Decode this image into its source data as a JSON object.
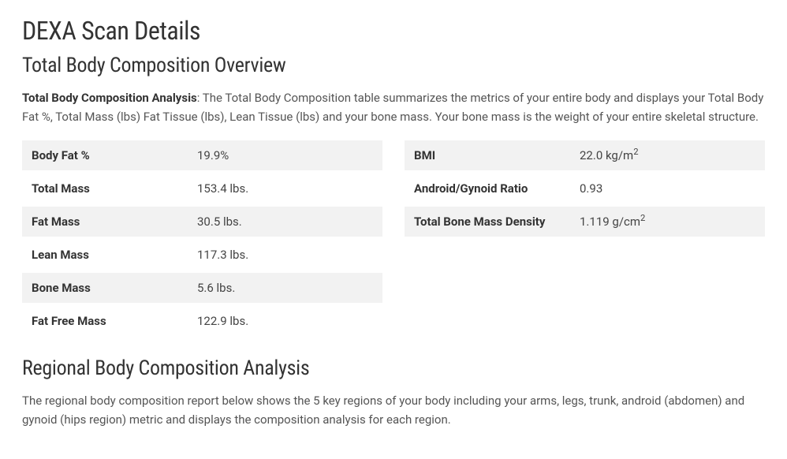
{
  "title": "DEXA Scan Details",
  "overview": {
    "heading": "Total Body Composition Overview",
    "intro_bold": "Total Body Composition Analysis",
    "intro_text": ": The Total Body Composition table summarizes the metrics of your entire body and displays your Total Body Fat %, Total Mass (lbs) Fat Tissue (lbs), Lean Tissue (lbs) and your bone mass. Your bone mass is the weight of your entire skeletal structure."
  },
  "left_table": [
    {
      "label": "Body Fat %",
      "value": "19.9%"
    },
    {
      "label": "Total Mass",
      "value": "153.4 lbs."
    },
    {
      "label": "Fat Mass",
      "value": "30.5 lbs."
    },
    {
      "label": "Lean Mass",
      "value": "117.3 lbs."
    },
    {
      "label": "Bone Mass",
      "value": "5.6 lbs."
    },
    {
      "label": "Fat Free Mass",
      "value": "122.9 lbs."
    }
  ],
  "right_table": [
    {
      "label": "BMI",
      "value": "22.0 kg/m",
      "sup": "2"
    },
    {
      "label": "Android/Gynoid Ratio",
      "value": "0.93"
    },
    {
      "label": "Total Bone Mass Density",
      "value": "1.119 g/cm",
      "sup": "2"
    }
  ],
  "regional": {
    "heading": "Regional Body Composition Analysis",
    "intro": "The regional body composition report below shows the 5 key regions of your body including your arms, legs, trunk, android (abdomen) and gynoid (hips region) metric and displays the composition analysis for each region."
  }
}
